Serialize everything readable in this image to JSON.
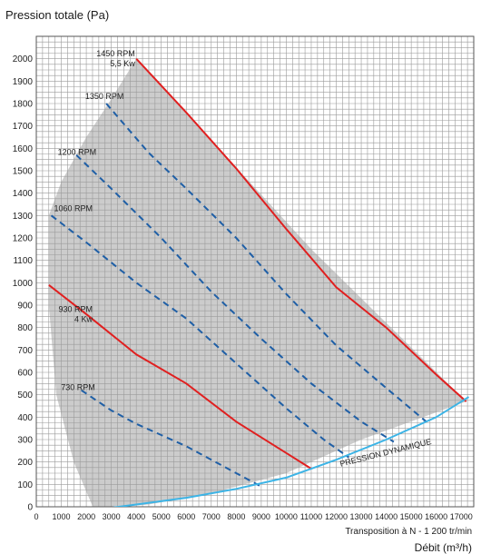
{
  "chart_data": {
    "type": "line",
    "title": "Pression totale (Pa)",
    "xlabel": "Débit (m³/h)",
    "xnote": "Transposition à N - 1 200 tr/min",
    "xlim": [
      0,
      17500
    ],
    "ylim": [
      0,
      2100
    ],
    "x_ticks": [
      0,
      1000,
      2000,
      3000,
      4000,
      5000,
      6000,
      7000,
      8000,
      9000,
      10000,
      11000,
      12000,
      13000,
      14000,
      15000,
      16000,
      17000
    ],
    "y_ticks": [
      0,
      100,
      200,
      300,
      400,
      500,
      600,
      700,
      800,
      900,
      1000,
      1100,
      1200,
      1300,
      1400,
      1500,
      1600,
      1700,
      1800,
      1900,
      2000
    ],
    "grid": true,
    "colors": {
      "solid": "#e02020",
      "dashed": "#1f5fa6",
      "dynamic": "#3cb4e6",
      "region": "#cccccc",
      "grid": "#9a9a9a"
    },
    "operating_region": [
      [
        500,
        1300
      ],
      [
        1000,
        1450
      ],
      [
        2000,
        1650
      ],
      [
        3000,
        1820
      ],
      [
        4000,
        2000
      ],
      [
        11000,
        1150
      ],
      [
        17200,
        470
      ],
      [
        13000,
        300
      ],
      [
        10000,
        150
      ],
      [
        7000,
        60
      ],
      [
        4500,
        10
      ],
      [
        2300,
        -10
      ],
      [
        1500,
        200
      ],
      [
        800,
        500
      ],
      [
        500,
        900
      ]
    ],
    "series": [
      {
        "name": "1450 RPM",
        "sub": "5,5 Kw",
        "style": "solid",
        "label_at": [
          3950,
          2010
        ],
        "points": [
          [
            4000,
            2000
          ],
          [
            6000,
            1760
          ],
          [
            8000,
            1510
          ],
          [
            10000,
            1240
          ],
          [
            12000,
            980
          ],
          [
            14000,
            800
          ],
          [
            16000,
            590
          ],
          [
            17200,
            470
          ]
        ]
      },
      {
        "name": "1350 RPM",
        "style": "dashed",
        "label_at": [
          3500,
          1820
        ],
        "points": [
          [
            2800,
            1800
          ],
          [
            4500,
            1580
          ],
          [
            6000,
            1420
          ],
          [
            8000,
            1200
          ],
          [
            10000,
            950
          ],
          [
            12000,
            720
          ],
          [
            14000,
            530
          ],
          [
            15600,
            380
          ]
        ]
      },
      {
        "name": "1200 RPM",
        "style": "dashed",
        "label_at": [
          2400,
          1570
        ],
        "points": [
          [
            1600,
            1570
          ],
          [
            3000,
            1420
          ],
          [
            5000,
            1200
          ],
          [
            7000,
            960
          ],
          [
            9000,
            750
          ],
          [
            11000,
            550
          ],
          [
            13000,
            380
          ],
          [
            14300,
            290
          ]
        ]
      },
      {
        "name": "1060 RPM",
        "style": "dashed",
        "label_at": [
          2250,
          1320
        ],
        "points": [
          [
            600,
            1300
          ],
          [
            2000,
            1180
          ],
          [
            4000,
            1000
          ],
          [
            6000,
            840
          ],
          [
            8000,
            640
          ],
          [
            10000,
            440
          ],
          [
            11500,
            300
          ],
          [
            12500,
            220
          ]
        ]
      },
      {
        "name": "930 RPM",
        "sub": "4 Kw",
        "style": "solid",
        "label_at": [
          2250,
          870
        ],
        "points": [
          [
            500,
            990
          ],
          [
            2000,
            860
          ],
          [
            4000,
            680
          ],
          [
            6000,
            550
          ],
          [
            8000,
            380
          ],
          [
            10000,
            240
          ],
          [
            11000,
            170
          ]
        ]
      },
      {
        "name": "730 RPM",
        "style": "dashed",
        "label_at": [
          2350,
          520
        ],
        "points": [
          [
            1800,
            520
          ],
          [
            3000,
            430
          ],
          [
            4000,
            370
          ],
          [
            6000,
            270
          ],
          [
            8000,
            150
          ],
          [
            9000,
            90
          ]
        ]
      },
      {
        "name": "PRESSION DYNAMIQUE",
        "style": "dynamic",
        "label_at": [
          14000,
          230
        ],
        "points": [
          [
            2300,
            -15
          ],
          [
            4000,
            10
          ],
          [
            6000,
            40
          ],
          [
            8000,
            80
          ],
          [
            10000,
            130
          ],
          [
            12000,
            210
          ],
          [
            14000,
            300
          ],
          [
            16000,
            400
          ],
          [
            17300,
            490
          ]
        ]
      }
    ]
  }
}
